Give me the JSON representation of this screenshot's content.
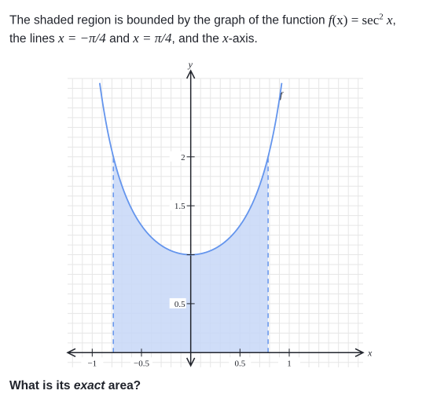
{
  "problem": {
    "line1_prefix": "The shaded region is bounded by the graph of the function ",
    "func_name": "f",
    "func_arg": "(x)",
    "func_eq": " = sec",
    "func_exp": "2",
    "func_var": " x",
    "line1_end": ",",
    "line2_prefix": "the lines ",
    "line_a": "x = −π/4",
    "line2_and": " and ",
    "line_b": "x = π/4",
    "line2_mid": ", and the ",
    "axis_word": "x",
    "line2_end": "-axis.",
    "question_prefix": "What is its ",
    "question_em": "exact",
    "question_suffix": " area?"
  },
  "chart_data": {
    "type": "area",
    "function": "sec^2(x)",
    "series": [
      {
        "name": "f",
        "fn": "sec2"
      }
    ],
    "shaded_interval": [
      -0.7854,
      0.7854
    ],
    "xlim": [
      -1.25,
      1.75
    ],
    "ylim": [
      -0.15,
      2.8
    ],
    "x_ticks": [
      -1,
      -0.5,
      0.5,
      1
    ],
    "x_tick_labels": [
      "−1",
      "−0.5",
      "0.5",
      "1"
    ],
    "y_ticks": [
      0.5,
      1.5,
      2
    ],
    "y_tick_labels": [
      "0.5",
      "1.5",
      "2"
    ],
    "xlabel": "x",
    "ylabel": "y",
    "grid": true,
    "grid_step": 0.1,
    "colors": {
      "curve": "#6495ed",
      "fill": "#c7d7f7",
      "grid": "#e6e6e6",
      "axis": "#21242c",
      "bound_line": "#6495ed"
    }
  }
}
